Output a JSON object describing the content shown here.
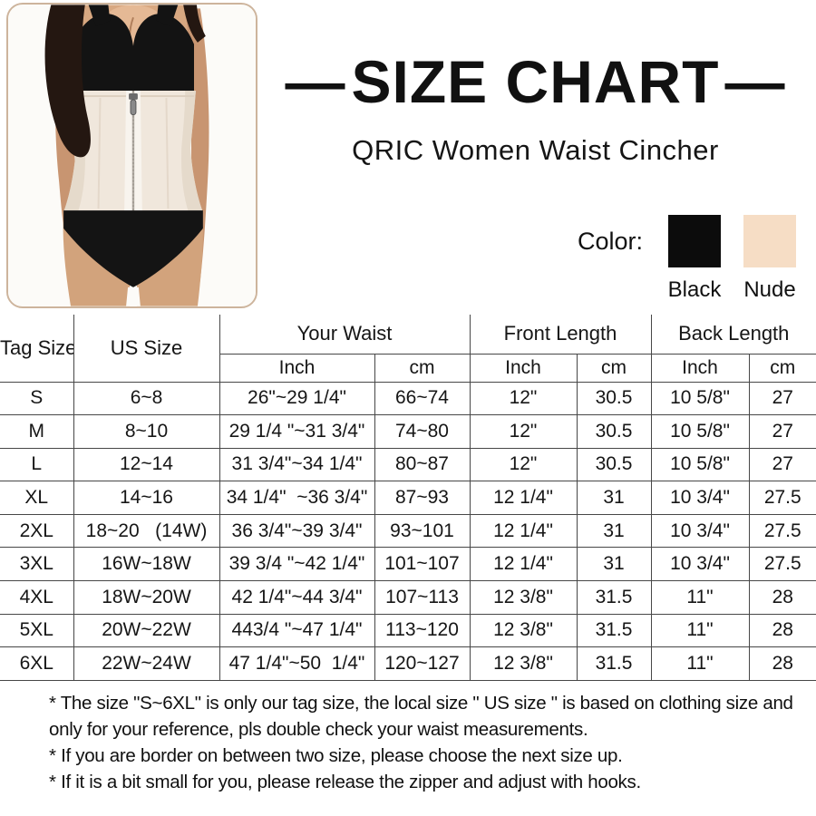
{
  "header": {
    "dash": "—",
    "title": "SIZE CHART",
    "subtitle": "QRIC Women Waist Cincher"
  },
  "photo": {
    "alt": "Model wearing a black bra and black briefs with a nude zip-front waist cincher"
  },
  "colors": {
    "label": "Color:",
    "options": [
      {
        "name": "Black",
        "hex": "#0c0c0c"
      },
      {
        "name": "Nude",
        "hex": "#f6ddc5"
      }
    ]
  },
  "table": {
    "group_headers": [
      "Tag Size",
      "US Size",
      "Your Waist",
      "Front Length",
      "Back Length"
    ],
    "sub_headers": [
      "Inch",
      "cm",
      "Inch",
      "cm",
      "Inch",
      "cm"
    ],
    "rows": [
      [
        "S",
        "6~8",
        "26\"~29 1/4\"",
        "66~74",
        "12\"",
        "30.5",
        "10 5/8\"",
        "27"
      ],
      [
        "M",
        "8~10",
        "29 1/4 \"~31 3/4\"",
        "74~80",
        "12\"",
        "30.5",
        "10 5/8\"",
        "27"
      ],
      [
        "L",
        "12~14",
        "31 3/4\"~34 1/4\"",
        "80~87",
        "12\"",
        "30.5",
        "10 5/8\"",
        "27"
      ],
      [
        "XL",
        "14~16",
        "34 1/4\"  ~36 3/4\"",
        "87~93",
        "12 1/4\"",
        "31",
        "10 3/4\"",
        "27.5"
      ],
      [
        "2XL",
        "18~20   (14W)",
        "36 3/4\"~39 3/4\"",
        "93~101",
        "12 1/4\"",
        "31",
        "10 3/4\"",
        "27.5"
      ],
      [
        "3XL",
        "16W~18W",
        "39 3/4 \"~42 1/4\"",
        "101~107",
        "12 1/4\"",
        "31",
        "10 3/4\"",
        "27.5"
      ],
      [
        "4XL",
        "18W~20W",
        "42 1/4\"~44 3/4\"",
        "107~113",
        "12 3/8\"",
        "31.5",
        "11\"",
        "28"
      ],
      [
        "5XL",
        "20W~22W",
        "443/4 \"~47 1/4\"",
        "113~120",
        "12 3/8\"",
        "31.5",
        "11\"",
        "28"
      ],
      [
        "6XL",
        "22W~24W",
        "47 1/4\"~50  1/4\"",
        "120~127",
        "12 3/8\"",
        "31.5",
        "11\"",
        "28"
      ]
    ]
  },
  "footnotes": [
    "* The size \"S~6XL\" is only our tag size, the local size \" US size \" is based on clothing size and only for your reference, pls double check your waist measurements.",
    "* If you are border on between two size, please choose the next size up.",
    "* If it is a bit small for you, please release the zipper and adjust with hooks."
  ]
}
